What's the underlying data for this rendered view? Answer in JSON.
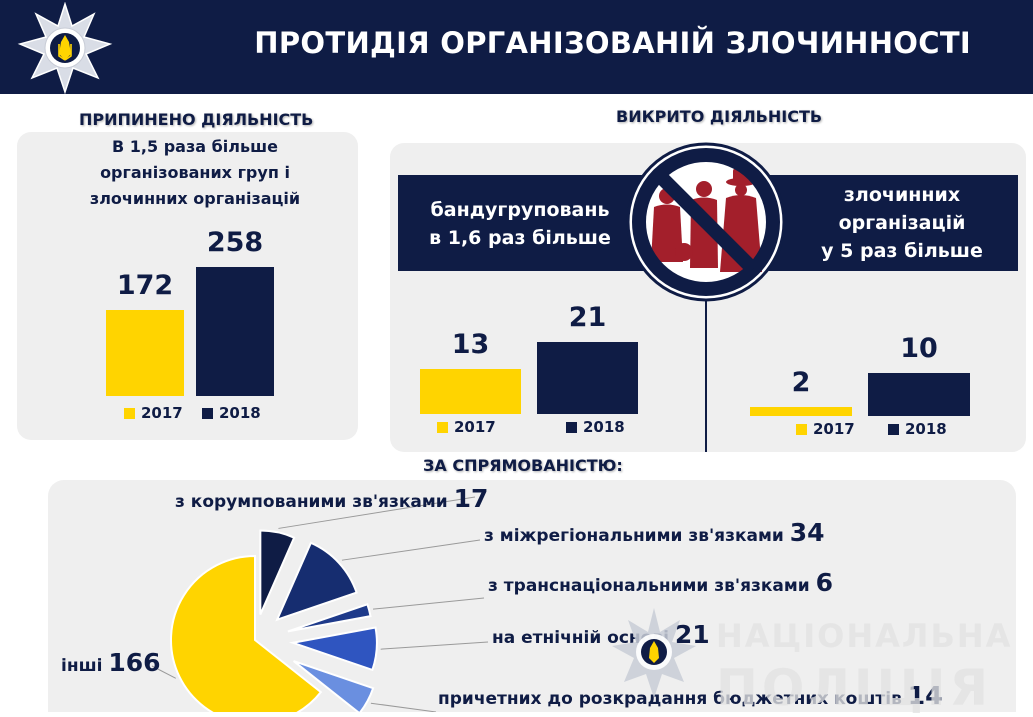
{
  "header": {
    "title": "ПРОТИДІЯ ОРГАНІЗОВАНІЙ ЗЛОЧИННОСТІ"
  },
  "left_panel": {
    "heading": "ПРИПИНЕНО ДІЯЛЬНІСТЬ",
    "subtitle_lines": [
      "В 1,5 раза більше",
      "організованих груп і",
      "злочинних організацій"
    ]
  },
  "right_panel": {
    "heading": "ВИКРИТО ДІЯЛЬНІСТЬ",
    "left_banner_lines": [
      "бандугруповань",
      "в 1,6 раз більше"
    ],
    "right_banner_lines": [
      "злочинних",
      "організацій",
      "у 5 раз більше"
    ]
  },
  "direction": {
    "heading": "ЗА СПРЯМОВАНІСТЮ:",
    "categories": [
      {
        "label": "з корумпованими зв'язками",
        "value": "17"
      },
      {
        "label": "з міжрегіональними зв'язками",
        "value": "34"
      },
      {
        "label": "з транснаціональними зв'язками",
        "value": "6"
      },
      {
        "label": "на етнічній основі",
        "value": "21"
      },
      {
        "label": "причетних до розкрадання бюджетних коштів",
        "value": "14"
      },
      {
        "label": "інші",
        "value": "166"
      }
    ]
  },
  "watermark": {
    "line1": "НАЦІОНАЛЬНА",
    "line2": "ПОЛІЦІЯ"
  },
  "icons": [
    "police-star-logo-icon",
    "no-crime-icon",
    "police-star-watermark-icon"
  ],
  "colors": {
    "navy": "#0f1c45",
    "yellow": "#ffd400",
    "panel": "#efefef"
  },
  "chart_data": [
    {
      "type": "bar",
      "title": "ПРИПИНЕНО ДІЯЛЬНІСТЬ",
      "categories": [
        "2017",
        "2018"
      ],
      "values": [
        172,
        258
      ],
      "legend": [
        "2017",
        "2018"
      ],
      "colors": [
        "#ffd400",
        "#0f1c45"
      ]
    },
    {
      "type": "bar",
      "title": "ВИКРИТО ДІЯЛЬНІСТЬ",
      "subtitle": "бандугруповань в 1,6 раз більше",
      "categories": [
        "2017",
        "2018"
      ],
      "values": [
        13,
        21
      ],
      "legend": [
        "2017",
        "2018"
      ],
      "colors": [
        "#ffd400",
        "#0f1c45"
      ]
    },
    {
      "type": "bar",
      "title": "ВИКРИТО ДІЯЛЬНІСТЬ",
      "subtitle": "злочинних організацій у 5 раз більше",
      "categories": [
        "2017",
        "2018"
      ],
      "values": [
        2,
        10
      ],
      "legend": [
        "2017",
        "2018"
      ],
      "colors": [
        "#ffd400",
        "#0f1c45"
      ]
    },
    {
      "type": "pie",
      "title": "ЗА СПРЯМОВАНІСТЮ:",
      "labels": [
        "з корумпованими зв'язками",
        "з міжрегіональними зв'язками",
        "з транснаціональними зв'язками",
        "на етнічній основі",
        "причетних до розкрадання бюджетних коштів",
        "інші"
      ],
      "values": [
        17,
        34,
        6,
        21,
        14,
        166
      ],
      "colors": [
        "#0f1c45",
        "#162d70",
        "#1e3a8a",
        "#2f55c0",
        "#6a8fe0",
        "#ffd400"
      ]
    }
  ]
}
